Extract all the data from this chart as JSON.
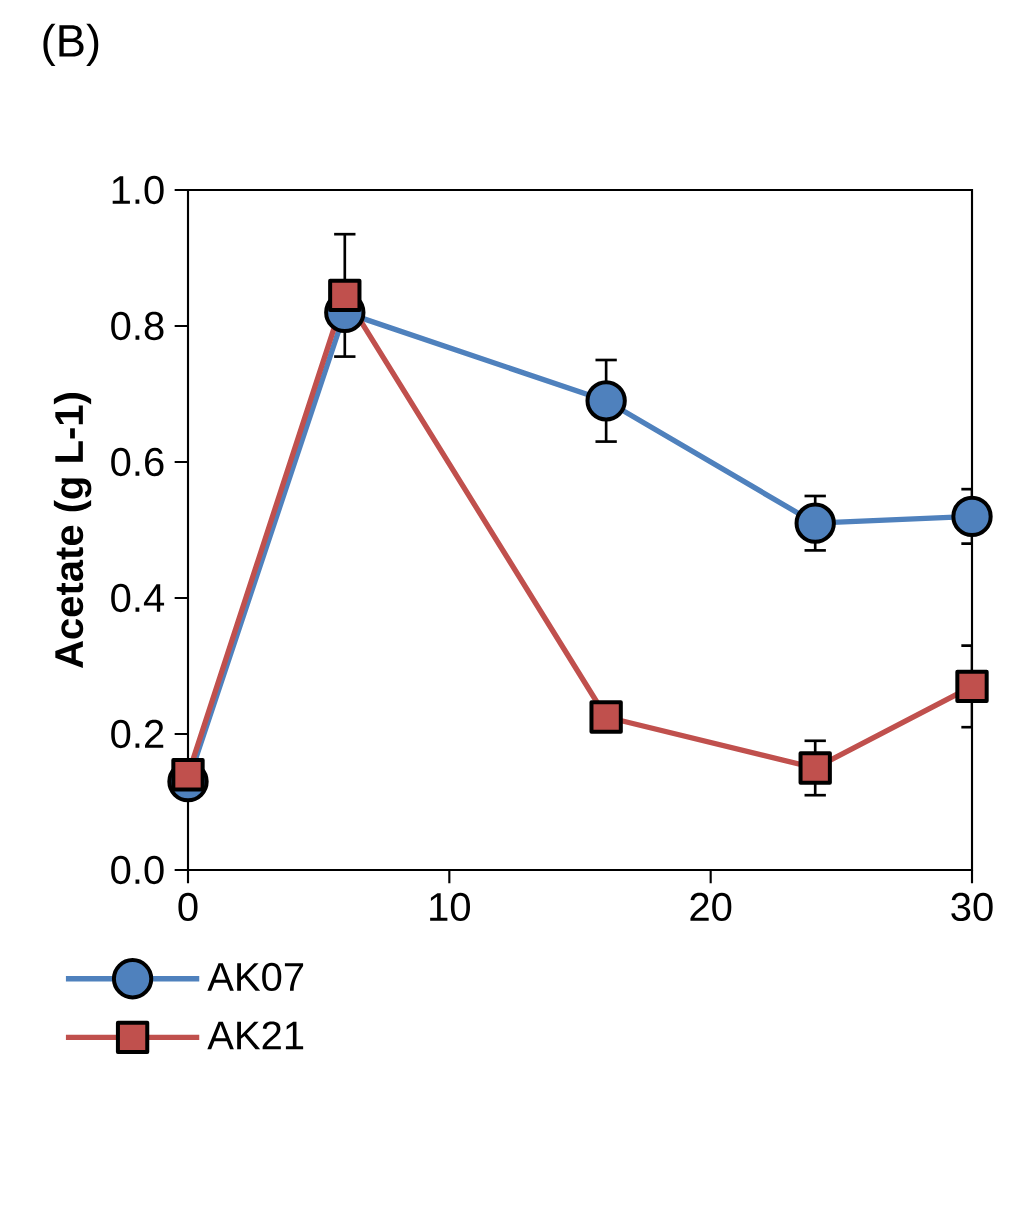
{
  "chart_data": {
    "type": "line",
    "title": "(B)",
    "ylabel": "Acetate (g L-1)",
    "xlim": [
      0,
      30
    ],
    "xticks": [
      0,
      10,
      20,
      30
    ],
    "ylim": [
      0,
      1
    ],
    "yticks": [
      {
        "value": 0,
        "label": "0.0"
      },
      {
        "value": 0.2,
        "label": "0.2"
      },
      {
        "value": 0.4,
        "label": "0.4"
      },
      {
        "value": 0.6,
        "label": "0.6"
      },
      {
        "value": 0.8,
        "label": "0.8"
      },
      {
        "value": 1,
        "label": "1.0"
      }
    ],
    "x": [
      0,
      6,
      16,
      24,
      30
    ],
    "series": [
      {
        "name": "AK07",
        "color": "#4f81bd",
        "marker": "circle",
        "values": [
          0.13,
          0.82,
          0.69,
          0.51,
          0.52
        ],
        "errors": [
          null,
          null,
          0.06,
          0.04,
          0.04
        ]
      },
      {
        "name": "AK21",
        "color": "#c0504d",
        "marker": "square",
        "values": [
          0.14,
          0.845,
          0.225,
          0.15,
          0.27
        ],
        "errors": [
          null,
          0.09,
          null,
          0.04,
          0.06
        ]
      }
    ],
    "legend": "bottom left",
    "grid": false,
    "line_style": "solid"
  }
}
